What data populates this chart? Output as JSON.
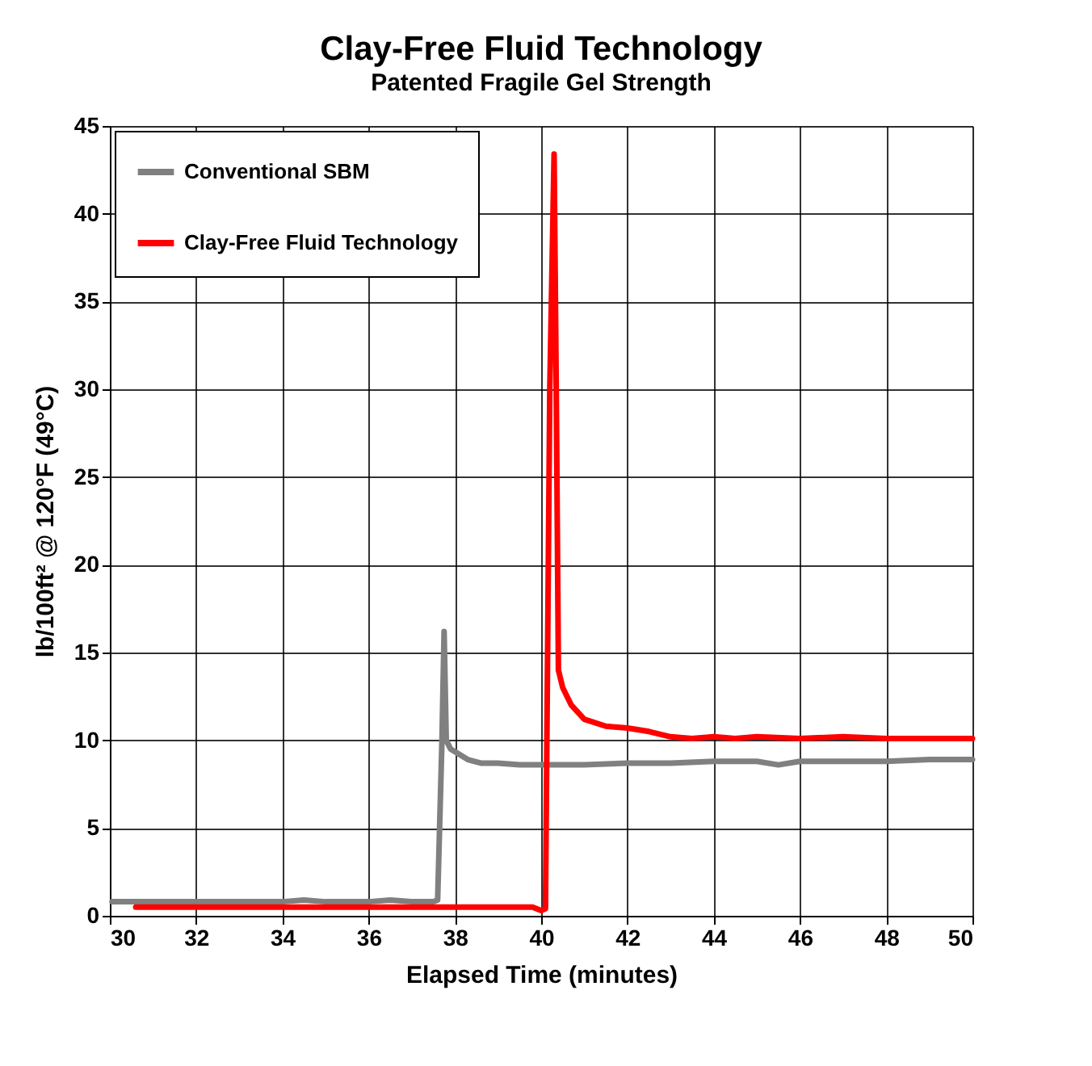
{
  "chart_data": {
    "type": "line",
    "title": "Clay-Free Fluid Technology",
    "subtitle": "Patented Fragile Gel Strength",
    "xlabel": "Elapsed Time (minutes)",
    "ylabel": "lb/100ft² @ 120°F (49°C)",
    "xlim": [
      30,
      50
    ],
    "xticks": [
      30,
      32,
      34,
      36,
      38,
      40,
      42,
      44,
      46,
      48,
      50
    ],
    "ylim": [
      0,
      45
    ],
    "yticks": [
      0,
      5,
      10,
      15,
      20,
      25,
      30,
      35,
      40,
      45
    ],
    "grid": true,
    "legend": "top left",
    "marker": "none",
    "line_style": "solid",
    "series": [
      {
        "name": "Conventional SBM",
        "color": "#808080",
        "x": [
          30.05,
          31,
          32,
          33,
          34,
          34.5,
          35,
          36,
          36.5,
          37,
          37.5,
          37.6,
          37.7,
          37.75,
          37.8,
          37.9,
          38.1,
          38.3,
          38.6,
          39,
          39.5,
          40,
          40.5,
          41,
          42,
          43,
          44,
          45,
          45.5,
          46,
          47,
          48,
          49,
          50
        ],
        "values": [
          0.8,
          0.8,
          0.8,
          0.8,
          0.8,
          0.9,
          0.8,
          0.8,
          0.9,
          0.8,
          0.8,
          0.9,
          10,
          16.2,
          10,
          9.5,
          9.2,
          8.9,
          8.7,
          8.7,
          8.6,
          8.6,
          8.6,
          8.6,
          8.7,
          8.7,
          8.8,
          8.8,
          8.6,
          8.8,
          8.8,
          8.8,
          8.9,
          8.9
        ]
      },
      {
        "name": "Clay-Free Fluid Technology",
        "color": "#ff0000",
        "x": [
          30.6,
          32,
          34,
          35,
          36,
          37,
          38,
          39,
          39.8,
          40,
          40.1,
          40.2,
          40.3,
          40.35,
          40.4,
          40.5,
          40.7,
          41,
          41.5,
          42,
          42.5,
          43,
          43.5,
          44,
          44.5,
          45,
          46,
          47,
          48,
          49,
          50
        ],
        "values": [
          0.5,
          0.5,
          0.5,
          0.5,
          0.5,
          0.5,
          0.5,
          0.5,
          0.5,
          0.3,
          0.4,
          30,
          43.4,
          30,
          14,
          13,
          12,
          11.2,
          10.8,
          10.7,
          10.5,
          10.2,
          10.1,
          10.2,
          10.1,
          10.2,
          10.1,
          10.2,
          10.1,
          10.1,
          10.1
        ]
      }
    ]
  }
}
